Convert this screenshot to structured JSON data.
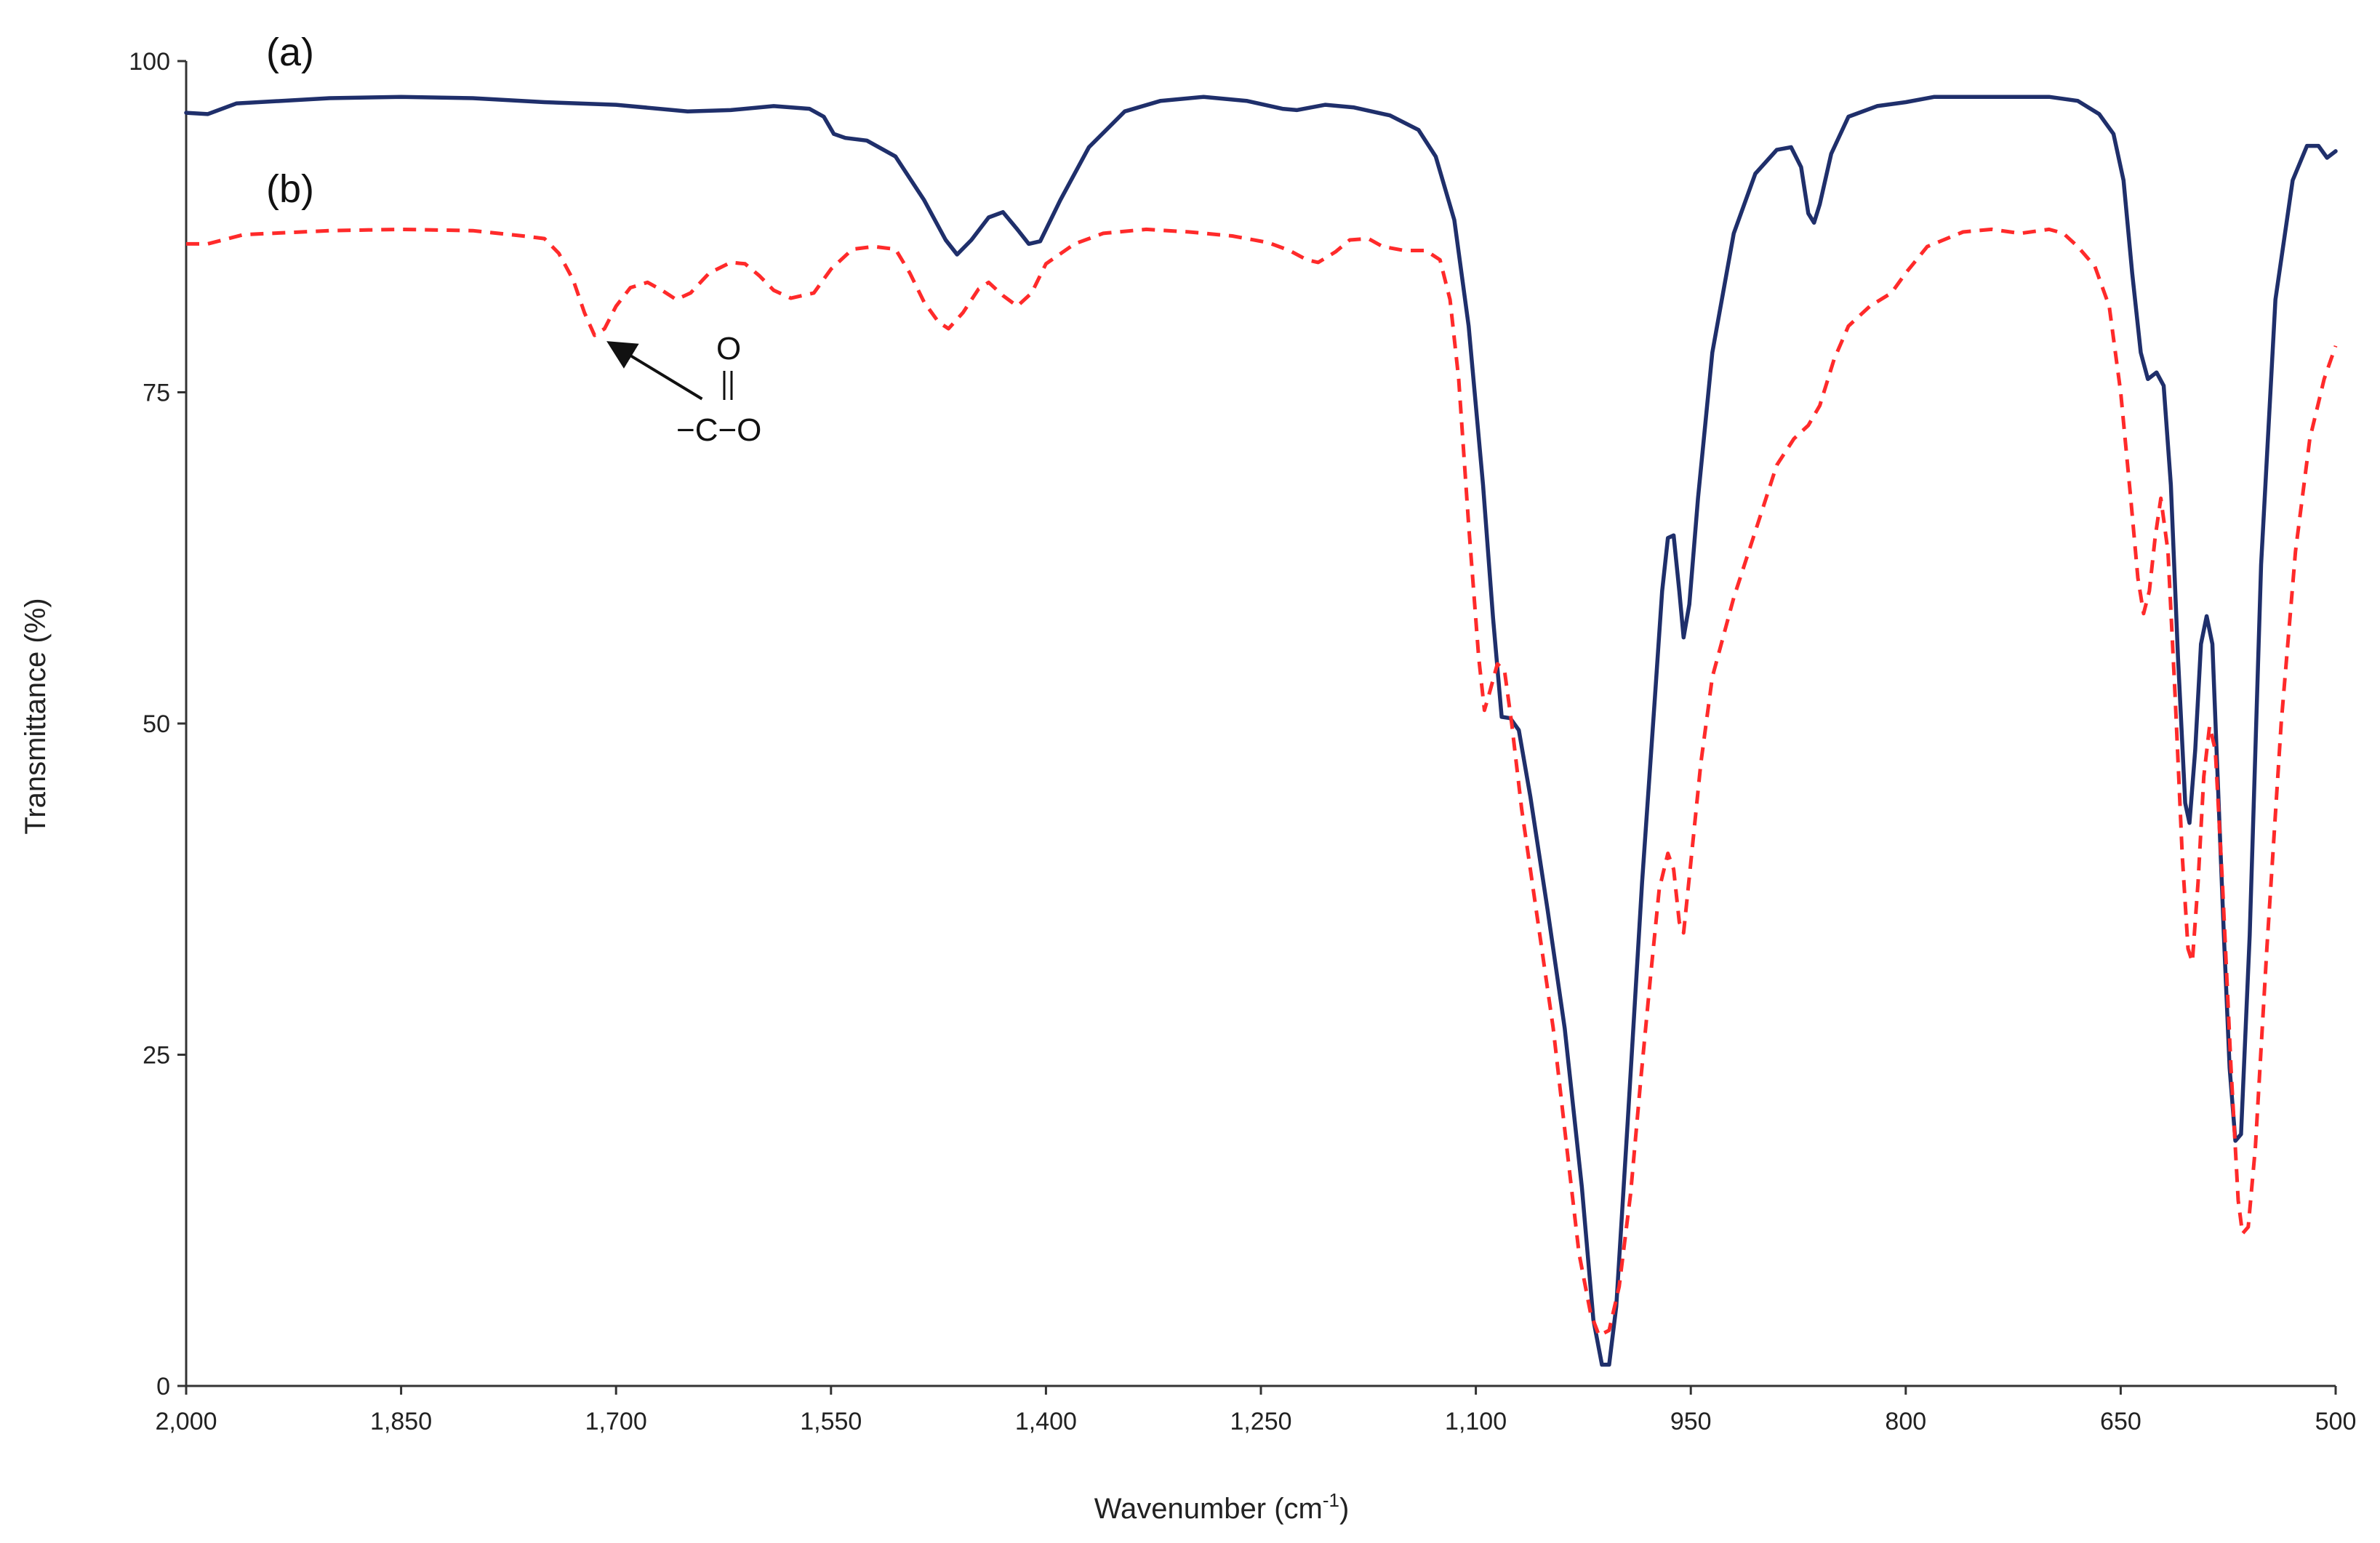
{
  "chart_data": {
    "type": "line",
    "title": "",
    "xlabel": "Wavenumber (cm",
    "xlabel_superscript": "-1",
    "xlabel_suffix": ")",
    "ylabel": "Transmittance (%)",
    "xlim": [
      2000,
      500
    ],
    "ylim": [
      0,
      100
    ],
    "x_reversed": true,
    "x_ticks": [
      2000,
      1850,
      1700,
      1550,
      1400,
      1250,
      1100,
      950,
      800,
      650,
      500
    ],
    "x_tick_labels": [
      "2,000",
      "1,850",
      "1,700",
      "1,550",
      "1,400",
      "1,250",
      "1,100",
      "950",
      "800",
      "650",
      "500"
    ],
    "y_ticks": [
      0,
      25,
      50,
      75,
      100
    ],
    "y_tick_labels": [
      "0",
      "25",
      "50",
      "75",
      "100"
    ],
    "grid": false,
    "series": [
      {
        "name": "(a)",
        "style": "solid",
        "color": "#1f2f6b",
        "points": [
          [
            2000,
            96.1
          ],
          [
            1985,
            96.0
          ],
          [
            1965,
            96.8
          ],
          [
            1900,
            97.2
          ],
          [
            1850,
            97.3
          ],
          [
            1800,
            97.2
          ],
          [
            1750,
            96.9
          ],
          [
            1700,
            96.7
          ],
          [
            1650,
            96.2
          ],
          [
            1620,
            96.3
          ],
          [
            1590,
            96.6
          ],
          [
            1565,
            96.4
          ],
          [
            1555,
            95.8
          ],
          [
            1548,
            94.5
          ],
          [
            1540,
            94.2
          ],
          [
            1525,
            94.0
          ],
          [
            1505,
            92.8
          ],
          [
            1485,
            89.5
          ],
          [
            1470,
            86.5
          ],
          [
            1462,
            85.4
          ],
          [
            1452,
            86.5
          ],
          [
            1440,
            88.2
          ],
          [
            1430,
            88.6
          ],
          [
            1420,
            87.3
          ],
          [
            1412,
            86.2
          ],
          [
            1404,
            86.4
          ],
          [
            1390,
            89.5
          ],
          [
            1370,
            93.5
          ],
          [
            1345,
            96.2
          ],
          [
            1320,
            97.0
          ],
          [
            1290,
            97.3
          ],
          [
            1260,
            97.0
          ],
          [
            1235,
            96.4
          ],
          [
            1225,
            96.3
          ],
          [
            1205,
            96.7
          ],
          [
            1185,
            96.5
          ],
          [
            1160,
            95.9
          ],
          [
            1140,
            94.8
          ],
          [
            1128,
            92.8
          ],
          [
            1115,
            88.0
          ],
          [
            1105,
            80.0
          ],
          [
            1095,
            68.0
          ],
          [
            1088,
            58.0
          ],
          [
            1082,
            50.5
          ],
          [
            1076,
            50.4
          ],
          [
            1070,
            49.5
          ],
          [
            1062,
            44.5
          ],
          [
            1050,
            36.0
          ],
          [
            1038,
            27.0
          ],
          [
            1026,
            15.0
          ],
          [
            1018,
            5.0
          ],
          [
            1012,
            1.6
          ],
          [
            1007,
            1.6
          ],
          [
            1002,
            6.0
          ],
          [
            994,
            20.0
          ],
          [
            984,
            38.0
          ],
          [
            975,
            52.0
          ],
          [
            970,
            60.0
          ],
          [
            966,
            64.0
          ],
          [
            962,
            64.2
          ],
          [
            958,
            60.0
          ],
          [
            955,
            56.5
          ],
          [
            951,
            59.0
          ],
          [
            945,
            67.0
          ],
          [
            935,
            78.0
          ],
          [
            920,
            87.0
          ],
          [
            905,
            91.5
          ],
          [
            890,
            93.3
          ],
          [
            880,
            93.5
          ],
          [
            873,
            92.0
          ],
          [
            868,
            88.5
          ],
          [
            864,
            87.8
          ],
          [
            860,
            89.2
          ],
          [
            852,
            93.0
          ],
          [
            840,
            95.8
          ],
          [
            820,
            96.6
          ],
          [
            800,
            96.9
          ],
          [
            780,
            97.3
          ],
          [
            740,
            97.3
          ],
          [
            700,
            97.3
          ],
          [
            680,
            97.0
          ],
          [
            665,
            96.0
          ],
          [
            655,
            94.5
          ],
          [
            648,
            91.0
          ],
          [
            642,
            84.0
          ],
          [
            636,
            78.0
          ],
          [
            631,
            76.0
          ],
          [
            625,
            76.5
          ],
          [
            620,
            75.5
          ],
          [
            615,
            68.0
          ],
          [
            610,
            55.0
          ],
          [
            605,
            44.0
          ],
          [
            602,
            42.5
          ],
          [
            598,
            48.0
          ],
          [
            594,
            56.0
          ],
          [
            590,
            58.1
          ],
          [
            586,
            56.0
          ],
          [
            582,
            45.0
          ],
          [
            578,
            34.0
          ],
          [
            574,
            24.0
          ],
          [
            570,
            18.5
          ],
          [
            566,
            19.0
          ],
          [
            560,
            34.0
          ],
          [
            552,
            62.0
          ],
          [
            542,
            82.0
          ],
          [
            530,
            91.0
          ],
          [
            520,
            93.6
          ],
          [
            512,
            93.6
          ],
          [
            506,
            92.7
          ],
          [
            500,
            93.2
          ]
        ]
      },
      {
        "name": "(b)",
        "style": "dashed",
        "color": "#ff2a2a",
        "points": [
          [
            2000,
            86.2
          ],
          [
            1985,
            86.2
          ],
          [
            1960,
            86.9
          ],
          [
            1900,
            87.2
          ],
          [
            1850,
            87.3
          ],
          [
            1800,
            87.2
          ],
          [
            1765,
            86.8
          ],
          [
            1750,
            86.6
          ],
          [
            1740,
            85.5
          ],
          [
            1730,
            83.5
          ],
          [
            1722,
            81.0
          ],
          [
            1715,
            79.3
          ],
          [
            1708,
            79.8
          ],
          [
            1700,
            81.5
          ],
          [
            1690,
            82.9
          ],
          [
            1678,
            83.3
          ],
          [
            1668,
            82.7
          ],
          [
            1658,
            82.0
          ],
          [
            1648,
            82.5
          ],
          [
            1635,
            84.0
          ],
          [
            1620,
            84.8
          ],
          [
            1610,
            84.7
          ],
          [
            1600,
            83.8
          ],
          [
            1590,
            82.7
          ],
          [
            1578,
            82.1
          ],
          [
            1562,
            82.5
          ],
          [
            1550,
            84.3
          ],
          [
            1535,
            85.8
          ],
          [
            1520,
            86.0
          ],
          [
            1505,
            85.8
          ],
          [
            1495,
            84.0
          ],
          [
            1485,
            81.8
          ],
          [
            1475,
            80.3
          ],
          [
            1468,
            79.8
          ],
          [
            1458,
            81.0
          ],
          [
            1447,
            82.8
          ],
          [
            1440,
            83.3
          ],
          [
            1430,
            82.3
          ],
          [
            1420,
            81.5
          ],
          [
            1410,
            82.5
          ],
          [
            1400,
            84.7
          ],
          [
            1380,
            86.2
          ],
          [
            1360,
            87.0
          ],
          [
            1330,
            87.3
          ],
          [
            1300,
            87.1
          ],
          [
            1270,
            86.8
          ],
          [
            1245,
            86.3
          ],
          [
            1230,
            85.7
          ],
          [
            1218,
            85.0
          ],
          [
            1210,
            84.8
          ],
          [
            1198,
            85.6
          ],
          [
            1188,
            86.5
          ],
          [
            1175,
            86.6
          ],
          [
            1165,
            86.0
          ],
          [
            1150,
            85.7
          ],
          [
            1135,
            85.7
          ],
          [
            1125,
            85.0
          ],
          [
            1118,
            82.0
          ],
          [
            1112,
            76.0
          ],
          [
            1105,
            65.0
          ],
          [
            1098,
            55.0
          ],
          [
            1094,
            51.0
          ],
          [
            1090,
            52.5
          ],
          [
            1085,
            54.5
          ],
          [
            1080,
            54.0
          ],
          [
            1075,
            50.0
          ],
          [
            1068,
            43.5
          ],
          [
            1058,
            36.0
          ],
          [
            1046,
            27.0
          ],
          [
            1036,
            17.5
          ],
          [
            1028,
            10.0
          ],
          [
            1020,
            5.5
          ],
          [
            1014,
            3.8
          ],
          [
            1007,
            4.2
          ],
          [
            1000,
            7.5
          ],
          [
            992,
            14.5
          ],
          [
            985,
            23.0
          ],
          [
            978,
            31.0
          ],
          [
            972,
            37.5
          ],
          [
            966,
            40.2
          ],
          [
            962,
            39.0
          ],
          [
            958,
            35.0
          ],
          [
            955,
            34.2
          ],
          [
            950,
            39.5
          ],
          [
            943,
            47.0
          ],
          [
            935,
            53.5
          ],
          [
            920,
            59.5
          ],
          [
            905,
            64.5
          ],
          [
            890,
            69.5
          ],
          [
            878,
            71.5
          ],
          [
            868,
            72.5
          ],
          [
            860,
            74.0
          ],
          [
            850,
            77.5
          ],
          [
            840,
            80.0
          ],
          [
            825,
            81.5
          ],
          [
            810,
            82.5
          ],
          [
            800,
            84.0
          ],
          [
            785,
            86.0
          ],
          [
            760,
            87.1
          ],
          [
            740,
            87.3
          ],
          [
            720,
            87.0
          ],
          [
            700,
            87.3
          ],
          [
            690,
            87.0
          ],
          [
            680,
            86.0
          ],
          [
            668,
            84.5
          ],
          [
            658,
            81.5
          ],
          [
            650,
            75.0
          ],
          [
            643,
            67.0
          ],
          [
            638,
            61.0
          ],
          [
            634,
            58.3
          ],
          [
            630,
            60.0
          ],
          [
            626,
            64.0
          ],
          [
            622,
            67.0
          ],
          [
            617,
            63.0
          ],
          [
            612,
            52.0
          ],
          [
            607,
            40.0
          ],
          [
            603,
            33.0
          ],
          [
            600,
            32.0
          ],
          [
            596,
            38.0
          ],
          [
            592,
            46.0
          ],
          [
            588,
            49.8
          ],
          [
            584,
            48.0
          ],
          [
            579,
            38.0
          ],
          [
            573,
            24.0
          ],
          [
            568,
            14.0
          ],
          [
            565,
            11.5
          ],
          [
            561,
            12.0
          ],
          [
            556,
            18.0
          ],
          [
            548,
            33.0
          ],
          [
            538,
            50.0
          ],
          [
            528,
            63.0
          ],
          [
            518,
            71.5
          ],
          [
            508,
            76.0
          ],
          [
            500,
            78.5
          ]
        ]
      }
    ],
    "annotations": [
      {
        "type": "arrow",
        "from": [
          1640,
          74.5
        ],
        "to": [
          1712,
          79.3
        ]
      },
      {
        "type": "structure",
        "top": "O",
        "bond": "||",
        "chain": "−C−O",
        "anchor": [
          1615,
          76
        ]
      }
    ]
  }
}
